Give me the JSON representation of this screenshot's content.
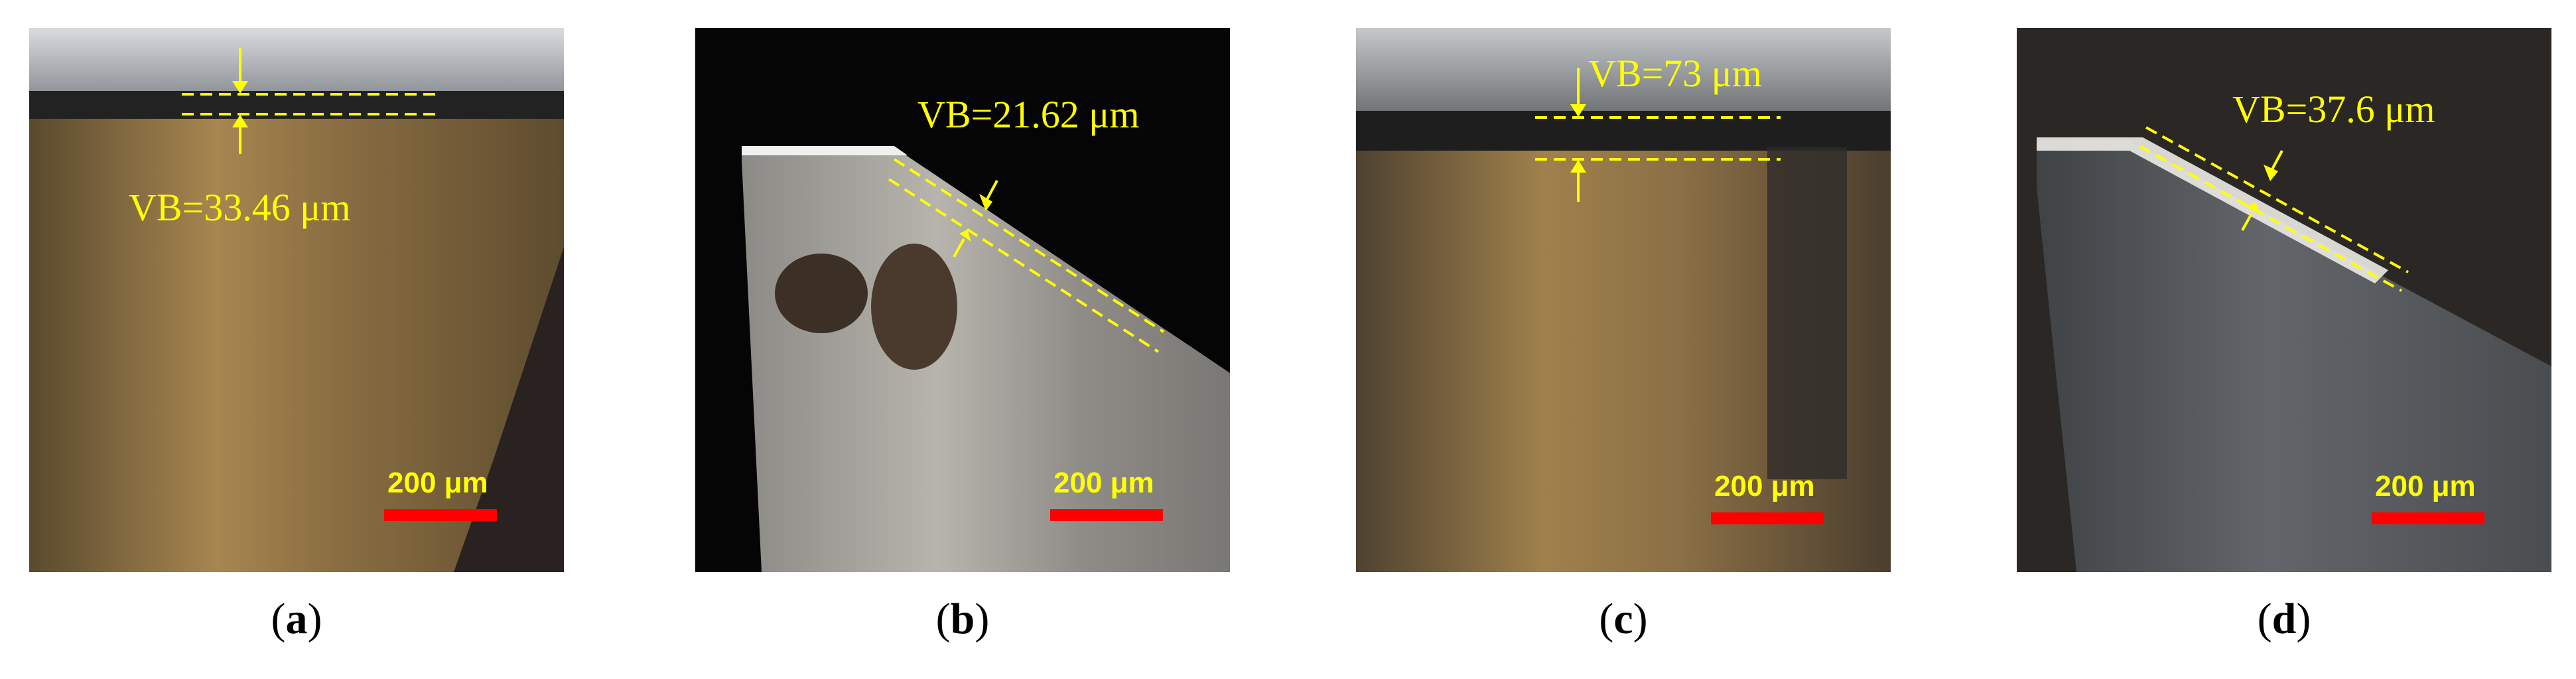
{
  "panels": [
    {
      "id": "a",
      "vb_label": "VB=33.46 μm",
      "scale_label": "200 μm"
    },
    {
      "id": "b",
      "vb_label": "VB=21.62 μm",
      "scale_label": "200 μm"
    },
    {
      "id": "c",
      "vb_label": "VB=73 μm",
      "scale_label": "200 μm"
    },
    {
      "id": "d",
      "vb_label": "VB=37.6 μm",
      "scale_label": "200 μm"
    }
  ],
  "colors": {
    "annotation": "#ffff00",
    "scale_bar": "#ff0000",
    "caption": "#000000"
  }
}
